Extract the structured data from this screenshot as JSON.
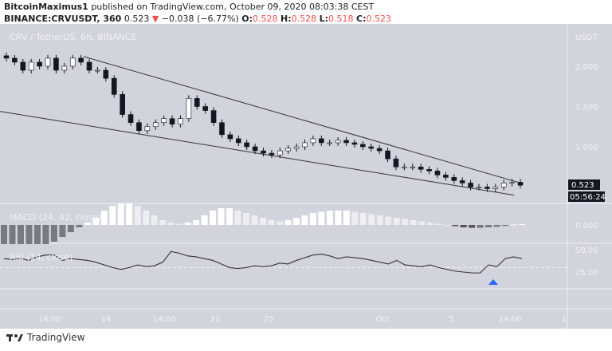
{
  "header": {
    "author": "BitcoinMaximus1",
    "published": "published on TradingView.com, October 09, 2020 08:03:38 CEST",
    "symbol": "BINANCE:CRVUSDT, 360",
    "last": "0.523",
    "change": "−0.038 (−6.77%)",
    "o_label": "O:",
    "o": "0.528",
    "h_label": "H:",
    "h": "0.528",
    "l_label": "L:",
    "l": "0.518",
    "c_label": "C:",
    "c": "0.523"
  },
  "footer": {
    "brand": "TradingView"
  },
  "chart_data": {
    "type": "candlestick",
    "title": "CRV / TetherUS, 6h, BINANCE",
    "currency": "USDT",
    "price_ticks": [
      "2.000",
      "1.500",
      "1.000"
    ],
    "price_tick_values": [
      2.0,
      1.5,
      1.0
    ],
    "last_price_label": "0.523",
    "countdown": "05:56:24",
    "time_ticks": [
      "14:00",
      "14",
      "14:00",
      "21",
      "25",
      "Oct",
      "5",
      "14:00",
      "1"
    ],
    "close": [
      2.1,
      2.05,
      1.95,
      2.05,
      2.0,
      2.1,
      1.95,
      2.0,
      2.1,
      2.05,
      1.95,
      1.95,
      1.85,
      1.65,
      1.4,
      1.3,
      1.2,
      1.25,
      1.3,
      1.35,
      1.28,
      1.35,
      1.6,
      1.5,
      1.45,
      1.3,
      1.15,
      1.1,
      1.05,
      1.0,
      0.95,
      0.92,
      0.9,
      0.95,
      0.98,
      1.0,
      1.05,
      1.1,
      1.05,
      1.05,
      1.08,
      1.05,
      1.03,
      1.0,
      0.98,
      0.95,
      0.85,
      0.75,
      0.75,
      0.75,
      0.72,
      0.7,
      0.65,
      0.62,
      0.58,
      0.55,
      0.5,
      0.5,
      0.48,
      0.5,
      0.55,
      0.56,
      0.523
    ],
    "macd": {
      "label": "MACD (24, 42, close)",
      "zero_label": "0.000",
      "histogram": [
        -0.08,
        -0.08,
        -0.08,
        -0.08,
        -0.08,
        -0.08,
        -0.07,
        -0.05,
        -0.03,
        -0.01,
        0.01,
        0.03,
        0.06,
        0.08,
        0.09,
        0.09,
        0.08,
        0.06,
        0.04,
        0.02,
        0.01,
        0.005,
        0.01,
        0.02,
        0.04,
        0.06,
        0.07,
        0.07,
        0.06,
        0.05,
        0.04,
        0.03,
        0.02,
        0.015,
        0.02,
        0.03,
        0.04,
        0.05,
        0.055,
        0.06,
        0.06,
        0.06,
        0.055,
        0.05,
        0.045,
        0.04,
        0.035,
        0.03,
        0.025,
        0.02,
        0.015,
        0.01,
        0.005,
        0.0,
        -0.005,
        -0.01,
        -0.012,
        -0.012,
        -0.01,
        -0.008,
        -0.004,
        0.002,
        0.004
      ]
    },
    "rsi": {
      "label": "RSI (14, close)",
      "ticks": [
        "50.00",
        "25.00"
      ],
      "level": 30,
      "values": [
        40,
        39,
        40,
        38,
        42,
        44,
        44,
        38,
        40,
        39,
        38,
        36,
        33,
        30,
        28,
        30,
        33,
        31,
        32,
        36,
        48,
        46,
        43,
        42,
        40,
        38,
        34,
        30,
        29,
        30,
        32,
        31,
        32,
        35,
        34,
        38,
        41,
        44,
        45,
        43,
        40,
        42,
        41,
        40,
        38,
        36,
        34,
        38,
        33,
        32,
        31,
        33,
        30,
        28,
        26,
        25,
        24,
        24,
        33,
        31,
        40,
        42,
        40
      ]
    },
    "trendlines": [
      {
        "name": "upper",
        "from": 2.12,
        "to": 0.56
      },
      {
        "name": "lower",
        "from": 1.44,
        "to": 0.4
      }
    ],
    "colors": {
      "bg": "#d1d4dc",
      "up": "#ffffff",
      "down": "#131722",
      "label_bg": "#131722",
      "signal": "#2962ff"
    }
  }
}
